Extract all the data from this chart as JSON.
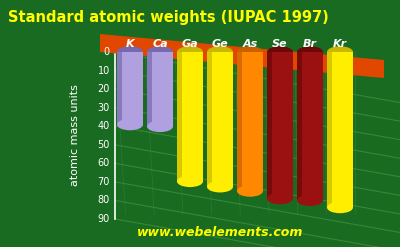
{
  "title": "Standard atomic weights (IUPAC 1997)",
  "ylabel": "atomic mass units",
  "watermark": "www.webelements.com",
  "background_color": "#1a6b22",
  "title_color": "#ffff00",
  "axis_color": "#ffffff",
  "watermark_color": "#ffff00",
  "categories": [
    "K",
    "Ca",
    "Ga",
    "Ge",
    "As",
    "Se",
    "Br",
    "Kr"
  ],
  "values": [
    39.1,
    40.08,
    69.72,
    72.61,
    74.92,
    78.96,
    79.9,
    83.8
  ],
  "bar_colors": [
    "#b0a0e0",
    "#b0a0e0",
    "#ffee00",
    "#ffee00",
    "#ff8800",
    "#9b1010",
    "#9b1010",
    "#ffee00"
  ],
  "bar_dark": [
    "#7868b0",
    "#7868b0",
    "#c8b800",
    "#c8b800",
    "#c86000",
    "#6b0808",
    "#6b0808",
    "#c8b800"
  ],
  "ylim_max": 90,
  "yticks": [
    0,
    10,
    20,
    30,
    40,
    50,
    60,
    70,
    80,
    90
  ],
  "base_color": "#e04800",
  "base_dark": "#b03000",
  "grid_color": "#3a8a3a",
  "label_fontsize": 8,
  "title_fontsize": 10.5,
  "watermark_fontsize": 9
}
